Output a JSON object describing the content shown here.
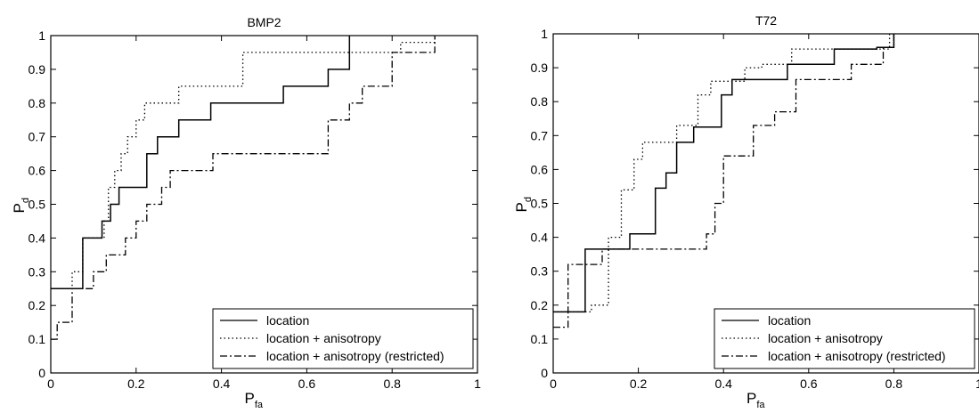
{
  "chart_data": [
    {
      "type": "line",
      "title": "BMP2",
      "xlabel": "P",
      "xlabel_sub": "fa",
      "ylabel": "P",
      "ylabel_sub": "d",
      "xlim": [
        0,
        1
      ],
      "ylim": [
        0,
        1
      ],
      "xticks": [
        "0",
        "0.2",
        "0.4",
        "0.6",
        "0.8",
        "1"
      ],
      "yticks": [
        "0",
        "0.1",
        "0.2",
        "0.3",
        "0.4",
        "0.5",
        "0.6",
        "0.7",
        "0.8",
        "0.9",
        "1"
      ],
      "grid": false,
      "legend_position": "bottom-right",
      "series": [
        {
          "name": "location",
          "style": "solid",
          "x": [
            0,
            0.075,
            0.075,
            0.12,
            0.12,
            0.14,
            0.14,
            0.16,
            0.16,
            0.19,
            0.19,
            0.225,
            0.225,
            0.245,
            0.245,
            0.25,
            0.25,
            0.28,
            0.28,
            0.3,
            0.3,
            0.375,
            0.375,
            0.545,
            0.545,
            0.65,
            0.65,
            0.7,
            0.7
          ],
          "y": [
            0.25,
            0.25,
            0.4,
            0.4,
            0.45,
            0.45,
            0.5,
            0.5,
            0.55,
            0.55,
            0.55,
            0.55,
            0.65,
            0.65,
            0.65,
            0.65,
            0.7,
            0.7,
            0.7,
            0.7,
            0.75,
            0.75,
            0.8,
            0.8,
            0.85,
            0.85,
            0.9,
            0.9,
            1
          ]
        },
        {
          "name": "location + anisotropy",
          "style": "dotted",
          "x": [
            0,
            0.05,
            0.05,
            0.075,
            0.075,
            0.125,
            0.125,
            0.135,
            0.135,
            0.15,
            0.15,
            0.165,
            0.165,
            0.18,
            0.18,
            0.2,
            0.2,
            0.22,
            0.22,
            0.245,
            0.245,
            0.26,
            0.26,
            0.3,
            0.3,
            0.33,
            0.33,
            0.4,
            0.4,
            0.45,
            0.45,
            0.82,
            0.82,
            0.9,
            0.9
          ],
          "y": [
            0.25,
            0.25,
            0.3,
            0.3,
            0.4,
            0.4,
            0.45,
            0.45,
            0.55,
            0.55,
            0.6,
            0.6,
            0.65,
            0.65,
            0.7,
            0.7,
            0.75,
            0.75,
            0.8,
            0.8,
            0.8,
            0.8,
            0.8,
            0.8,
            0.85,
            0.85,
            0.85,
            0.85,
            0.85,
            0.85,
            0.95,
            0.95,
            0.98,
            0.98,
            1
          ]
        },
        {
          "name": "location + anisotropy (restricted)",
          "style": "dashdot",
          "x": [
            0,
            0.015,
            0.015,
            0.05,
            0.05,
            0.075,
            0.075,
            0.1,
            0.1,
            0.11,
            0.11,
            0.13,
            0.13,
            0.175,
            0.175,
            0.2,
            0.2,
            0.225,
            0.225,
            0.25,
            0.25,
            0.26,
            0.26,
            0.28,
            0.28,
            0.3,
            0.3,
            0.38,
            0.38,
            0.42,
            0.42,
            0.65,
            0.65,
            0.7,
            0.7,
            0.73,
            0.73,
            0.76,
            0.76,
            0.8,
            0.8,
            0.9,
            0.9
          ],
          "y": [
            0.1,
            0.1,
            0.15,
            0.15,
            0.25,
            0.25,
            0.25,
            0.25,
            0.3,
            0.3,
            0.3,
            0.3,
            0.35,
            0.35,
            0.4,
            0.4,
            0.45,
            0.45,
            0.5,
            0.5,
            0.5,
            0.5,
            0.55,
            0.55,
            0.6,
            0.6,
            0.6,
            0.6,
            0.65,
            0.65,
            0.65,
            0.65,
            0.75,
            0.75,
            0.8,
            0.8,
            0.85,
            0.85,
            0.85,
            0.85,
            0.95,
            0.95,
            1
          ]
        }
      ]
    },
    {
      "type": "line",
      "title": "T72",
      "xlabel": "P",
      "xlabel_sub": "fa",
      "ylabel": "P",
      "ylabel_sub": "d",
      "xlim": [
        0,
        1
      ],
      "ylim": [
        0,
        1
      ],
      "xticks": [
        "0",
        "0.2",
        "0.4",
        "0.6",
        "0.8",
        "1"
      ],
      "yticks": [
        "0",
        "0.1",
        "0.2",
        "0.3",
        "0.4",
        "0.5",
        "0.6",
        "0.7",
        "0.8",
        "0.9",
        "1"
      ],
      "grid": false,
      "legend_position": "bottom-right",
      "series": [
        {
          "name": "location",
          "style": "solid",
          "x": [
            0,
            0.075,
            0.075,
            0.18,
            0.18,
            0.24,
            0.24,
            0.265,
            0.265,
            0.29,
            0.29,
            0.33,
            0.33,
            0.395,
            0.395,
            0.42,
            0.42,
            0.55,
            0.55,
            0.66,
            0.66,
            0.76,
            0.76,
            0.8,
            0.8
          ],
          "y": [
            0.18,
            0.18,
            0.365,
            0.365,
            0.41,
            0.41,
            0.545,
            0.545,
            0.59,
            0.59,
            0.68,
            0.68,
            0.725,
            0.725,
            0.82,
            0.82,
            0.865,
            0.865,
            0.91,
            0.91,
            0.955,
            0.955,
            0.96,
            0.96,
            1
          ]
        },
        {
          "name": "location + anisotropy",
          "style": "dotted",
          "x": [
            0,
            0.09,
            0.09,
            0.13,
            0.13,
            0.16,
            0.16,
            0.19,
            0.19,
            0.21,
            0.21,
            0.29,
            0.29,
            0.34,
            0.34,
            0.37,
            0.37,
            0.39,
            0.39,
            0.45,
            0.45,
            0.49,
            0.49,
            0.56,
            0.56,
            0.79,
            0.79
          ],
          "y": [
            0.18,
            0.18,
            0.2,
            0.2,
            0.4,
            0.4,
            0.54,
            0.54,
            0.63,
            0.63,
            0.68,
            0.68,
            0.73,
            0.73,
            0.82,
            0.82,
            0.86,
            0.86,
            0.86,
            0.86,
            0.9,
            0.9,
            0.91,
            0.91,
            0.955,
            0.955,
            1
          ]
        },
        {
          "name": "location + anisotropy (restricted)",
          "style": "dashdot",
          "x": [
            0,
            0.035,
            0.035,
            0.065,
            0.065,
            0.115,
            0.115,
            0.18,
            0.18,
            0.36,
            0.36,
            0.38,
            0.38,
            0.4,
            0.4,
            0.425,
            0.425,
            0.47,
            0.47,
            0.52,
            0.52,
            0.57,
            0.57,
            0.665,
            0.665,
            0.7,
            0.7,
            0.775,
            0.775,
            0.8,
            0.8
          ],
          "y": [
            0.135,
            0.135,
            0.32,
            0.32,
            0.32,
            0.32,
            0.365,
            0.365,
            0.365,
            0.365,
            0.41,
            0.41,
            0.5,
            0.5,
            0.64,
            0.64,
            0.64,
            0.64,
            0.73,
            0.73,
            0.77,
            0.77,
            0.865,
            0.865,
            0.865,
            0.865,
            0.91,
            0.91,
            0.96,
            0.96,
            1
          ]
        }
      ]
    }
  ]
}
